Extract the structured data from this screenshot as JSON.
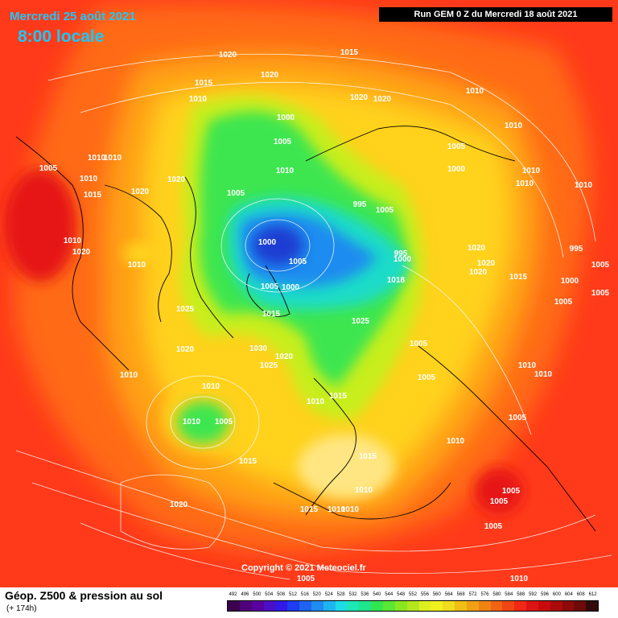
{
  "header": {
    "date": "Mercredi 25 août 2021",
    "time": "8:00 locale",
    "run": "Run GEM 0 Z du Mercredi 18 août 2021"
  },
  "map": {
    "copyright": "Copyright © 2021 Meteociel.fr",
    "pressure_labels": [
      "1015",
      "1020",
      "1020",
      "1015",
      "1010",
      "1020",
      "1020",
      "1010",
      "1000",
      "1005",
      "1010",
      "1010",
      "1020",
      "1005",
      "1005",
      "1000",
      "1005",
      "1010",
      "1010",
      "1010",
      "1015",
      "1020",
      "1010",
      "1010",
      "1010",
      "1010",
      "1020",
      "995",
      "1005",
      "995",
      "1000",
      "1005",
      "1000",
      "1000",
      "1005",
      "1018",
      "995",
      "1020",
      "1020",
      "1020",
      "1015",
      "1000",
      "1005",
      "1005",
      "1005",
      "1025",
      "1030",
      "1020",
      "1025",
      "1015",
      "1025",
      "1020",
      "1010",
      "1005",
      "1010",
      "1005",
      "1010",
      "1010",
      "1010",
      "1015",
      "1005",
      "1015",
      "1015",
      "1010",
      "1010",
      "1005",
      "1010",
      "1015",
      "1010",
      "1010",
      "1005",
      "1005",
      "1020",
      "1010",
      "1005",
      "1005",
      "1010"
    ],
    "colors": {
      "ocean_background": "#ff3a1a",
      "contour": "#ffffff",
      "coastline": "#000000",
      "low_center": "#1a50c8"
    }
  },
  "footer": {
    "title": "Géop. Z500 & pression au sol",
    "subtitle": "(+ 174h)",
    "scale": [
      "492",
      "496",
      "500",
      "504",
      "508",
      "512",
      "516",
      "520",
      "524",
      "528",
      "532",
      "536",
      "540",
      "544",
      "548",
      "552",
      "556",
      "560",
      "564",
      "568",
      "572",
      "576",
      "580",
      "584",
      "588",
      "592",
      "596",
      "600",
      "604",
      "608",
      "612"
    ],
    "scale_colors": [
      "#3c0050",
      "#50007a",
      "#5a00a0",
      "#4b0fc8",
      "#3219e6",
      "#1e3cf0",
      "#1e64f0",
      "#1e8cf0",
      "#1eb4f0",
      "#1edce6",
      "#1ee6b4",
      "#1ee68c",
      "#32e650",
      "#5ae632",
      "#8ce61e",
      "#b4e61e",
      "#dcf01e",
      "#f0f01e",
      "#f0dc1e",
      "#f0be14",
      "#f0a014",
      "#f08214",
      "#f06414",
      "#f04614",
      "#f02814",
      "#dc1414",
      "#c80a0a",
      "#aa0a0a",
      "#8c0a0a",
      "#6e0a0a",
      "#320a0a"
    ]
  }
}
